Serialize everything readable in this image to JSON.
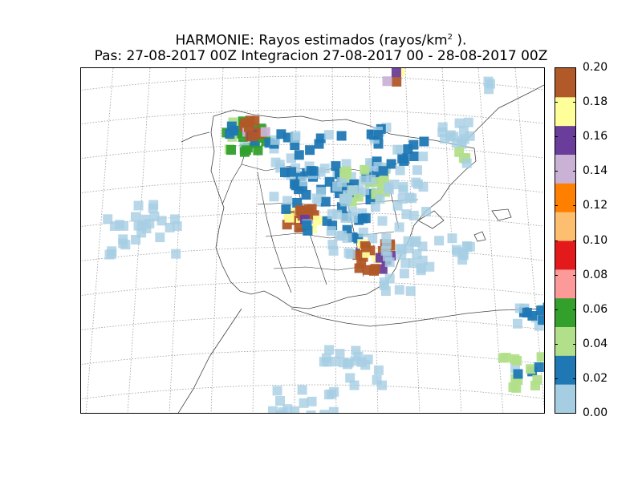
{
  "title": {
    "line1_main": "HARMONIE: Rayos estimados  (rayos/km",
    "line1_sup": "2",
    "line1_tail": " ).",
    "line2": "Pas: 27-08-2017 00Z Integracion 27-08-2017 00 - 28-08-2017 00Z"
  },
  "colorbar": {
    "ticks": [
      "0.00",
      "0.02",
      "0.04",
      "0.06",
      "0.08",
      "0.10",
      "0.12",
      "0.14",
      "0.16",
      "0.18",
      "0.20"
    ],
    "range": [
      0,
      0.2
    ],
    "colors": [
      "#a6cee3",
      "#1f78b4",
      "#b2df8a",
      "#33a02c",
      "#fb9a99",
      "#e31a1c",
      "#fdbf6f",
      "#ff7f00",
      "#cab2d6",
      "#6a3d9a",
      "#ffff99",
      "#b15928"
    ]
  },
  "map": {
    "region": "Iberian Peninsula and Balearic Islands",
    "gridlines": "dotted",
    "provincial_borders": true
  }
}
